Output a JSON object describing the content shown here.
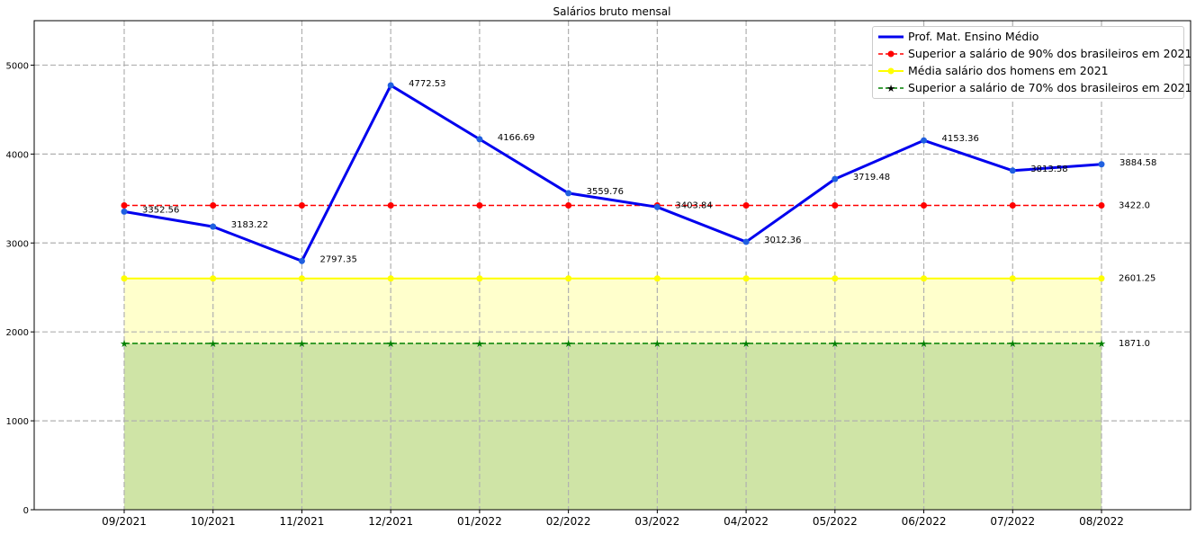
{
  "chart_data": {
    "type": "line",
    "title": "Salários bruto mensal",
    "categories": [
      "09/2021",
      "10/2021",
      "11/2021",
      "12/2021",
      "01/2022",
      "02/2022",
      "03/2022",
      "04/2022",
      "05/2022",
      "06/2022",
      "07/2022",
      "08/2022"
    ],
    "ylim": [
      0,
      5500
    ],
    "yticks": [
      0,
      1000,
      2000,
      3000,
      4000,
      5000
    ],
    "grid": true,
    "legend_position": "top-right",
    "series": [
      {
        "name": "Prof. Mat. Ensino Médio",
        "color": "#0000ee",
        "style": "solid",
        "marker": "circle",
        "values": [
          3352.56,
          3183.22,
          2797.35,
          4772.53,
          4166.69,
          3559.76,
          3403.84,
          3012.36,
          3719.48,
          4153.36,
          3813.58,
          3884.58
        ],
        "labels": [
          "3352.56",
          "3183.22",
          "2797.35",
          "4772.53",
          "4166.69",
          "3559.76",
          "3403.84",
          "3012.36",
          "3719.48",
          "4153.36",
          "3813.58",
          "3884.58"
        ]
      },
      {
        "name": "Superior a salário de 90% dos brasileiros em 2021",
        "color": "#ff0000",
        "style": "dashed",
        "marker": "circle",
        "values": [
          3422.0,
          3422.0,
          3422.0,
          3422.0,
          3422.0,
          3422.0,
          3422.0,
          3422.0,
          3422.0,
          3422.0,
          3422.0,
          3422.0
        ],
        "end_label": "3422.0"
      },
      {
        "name": "Média salário dos homens em 2021",
        "color": "#ffff00",
        "style": "solid",
        "marker": "circle",
        "fill": "#ffffcc",
        "values": [
          2601.25,
          2601.25,
          2601.25,
          2601.25,
          2601.25,
          2601.25,
          2601.25,
          2601.25,
          2601.25,
          2601.25,
          2601.25,
          2601.25
        ],
        "end_label": "2601.25"
      },
      {
        "name": "Superior a salário de 70% dos brasileiros em 2021",
        "color": "#008000",
        "style": "dashed",
        "marker": "star",
        "fill": "#cfe4a6",
        "values": [
          1871.0,
          1871.0,
          1871.0,
          1871.0,
          1871.0,
          1871.0,
          1871.0,
          1871.0,
          1871.0,
          1871.0,
          1871.0,
          1871.0
        ],
        "end_label": "1871.0"
      }
    ]
  }
}
